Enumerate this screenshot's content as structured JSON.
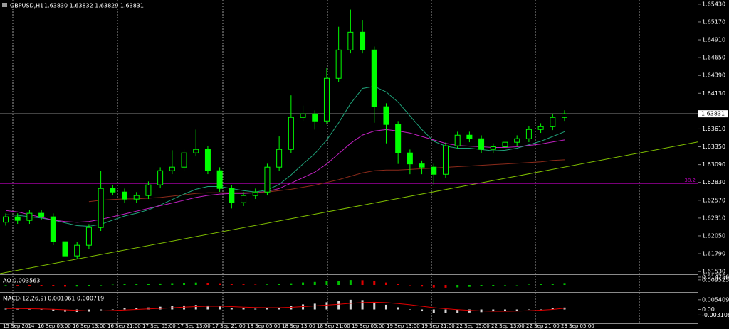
{
  "chart_data": [
    {
      "type": "candlestick",
      "title": "GBPUSD,H1",
      "ohlc_label": "1.63830 1.63832 1.63829 1.63831",
      "up_color": "#00ff00",
      "down_color": "#00ff00",
      "open": [
        1.6225,
        1.62328,
        1.62276,
        1.6238,
        1.62328,
        1.61965,
        1.61758,
        1.61913,
        1.62172,
        1.62742,
        1.6269,
        1.62587,
        1.62639,
        1.62794,
        1.63001,
        1.63053,
        1.6326,
        1.63312,
        1.63001,
        1.62742,
        1.62535,
        1.62639,
        1.6269,
        1.63053,
        1.63312,
        1.63778,
        1.6383,
        1.63726,
        1.64348,
        1.64762,
        1.65021,
        1.64762,
        1.63934,
        1.63675,
        1.6326,
        1.631,
        1.63053,
        1.62949,
        1.63364,
        1.63519,
        1.63467,
        1.63312,
        1.6335,
        1.63416,
        1.63467,
        1.63602,
        1.63643,
        1.63778
      ],
      "high": [
        1.62378,
        1.62378,
        1.6243,
        1.6243,
        1.62378,
        1.62015,
        1.61963,
        1.62222,
        1.63,
        1.62792,
        1.6274,
        1.62689,
        1.62844,
        1.63051,
        1.633,
        1.6331,
        1.636,
        1.63362,
        1.63051,
        1.62792,
        1.62689,
        1.6274,
        1.63103,
        1.635,
        1.641,
        1.6395,
        1.6388,
        1.645,
        1.651,
        1.6535,
        1.652,
        1.64812,
        1.63984,
        1.63725,
        1.6331,
        1.6315,
        1.63103,
        1.63414,
        1.63569,
        1.63569,
        1.63517,
        1.634,
        1.63466,
        1.63517,
        1.63652,
        1.63693,
        1.63828,
        1.63881
      ],
      "low": [
        1.622,
        1.62226,
        1.62226,
        1.62278,
        1.61915,
        1.6165,
        1.61708,
        1.61863,
        1.62122,
        1.6264,
        1.62537,
        1.62537,
        1.62589,
        1.62744,
        1.62951,
        1.63003,
        1.6321,
        1.62951,
        1.62692,
        1.6245,
        1.62485,
        1.62589,
        1.6264,
        1.63003,
        1.63262,
        1.63728,
        1.636,
        1.63676,
        1.64298,
        1.64712,
        1.64712,
        1.637,
        1.634,
        1.631,
        1.6295,
        1.6295,
        1.628,
        1.62899,
        1.63314,
        1.63417,
        1.63262,
        1.63262,
        1.633,
        1.63366,
        1.63417,
        1.63552,
        1.63593,
        1.63728
      ],
      "close": [
        1.62328,
        1.62276,
        1.6238,
        1.62328,
        1.61965,
        1.61758,
        1.61913,
        1.62172,
        1.62742,
        1.6269,
        1.62587,
        1.62639,
        1.62794,
        1.63001,
        1.63053,
        1.6326,
        1.63312,
        1.63001,
        1.62742,
        1.62535,
        1.62639,
        1.6269,
        1.63053,
        1.63312,
        1.63778,
        1.6383,
        1.63726,
        1.64348,
        1.64762,
        1.65021,
        1.64762,
        1.63934,
        1.63675,
        1.6326,
        1.631,
        1.63053,
        1.62949,
        1.63364,
        1.63519,
        1.63467,
        1.63312,
        1.6335,
        1.63416,
        1.63467,
        1.63602,
        1.63643,
        1.63778,
        1.63831
      ],
      "lines": [
        {
          "color": "#1fa37a",
          "values": [
            1.6236,
            1.6235,
            1.6233,
            1.6231,
            1.6228,
            1.6224,
            1.622,
            1.6219,
            1.6222,
            1.6228,
            1.6234,
            1.6238,
            1.6243,
            1.625,
            1.6258,
            1.6266,
            1.6273,
            1.6277,
            1.6277,
            1.6274,
            1.6271,
            1.6269,
            1.6272,
            1.628,
            1.6294,
            1.631,
            1.6325,
            1.6345,
            1.637,
            1.6398,
            1.642,
            1.6423,
            1.6415,
            1.64,
            1.638,
            1.636,
            1.6343,
            1.6336,
            1.6333,
            1.6333,
            1.6331,
            1.6329,
            1.633,
            1.6333,
            1.6338,
            1.6343,
            1.635,
            1.6357
          ]
        },
        {
          "color": "#c020c0",
          "values": [
            1.6242,
            1.624,
            1.6236,
            1.6232,
            1.6228,
            1.6226,
            1.6225,
            1.6226,
            1.6229,
            1.6233,
            1.6237,
            1.6241,
            1.6245,
            1.6249,
            1.6253,
            1.6257,
            1.6261,
            1.6264,
            1.6266,
            1.6267,
            1.6267,
            1.6268,
            1.627,
            1.6274,
            1.6282,
            1.629,
            1.6298,
            1.631,
            1.6325,
            1.634,
            1.6352,
            1.6358,
            1.636,
            1.6358,
            1.6355,
            1.635,
            1.6345,
            1.634,
            1.6337,
            1.6336,
            1.6335,
            1.6334,
            1.6334,
            1.6335,
            1.6337,
            1.6339,
            1.6342,
            1.6345
          ]
        },
        {
          "color": "#8b2a1a",
          "values": [
            null,
            null,
            null,
            null,
            null,
            null,
            null,
            1.6255,
            1.6257,
            1.6258,
            1.6259,
            1.6259,
            1.626,
            1.6261,
            1.6263,
            1.6265,
            1.6267,
            1.6268,
            1.6268,
            1.6268,
            1.6268,
            1.6268,
            1.6269,
            1.6271,
            1.6273,
            1.6276,
            1.6279,
            1.6283,
            1.6287,
            1.6292,
            1.6297,
            1.63,
            1.6301,
            1.6301,
            1.6302,
            1.6303,
            1.6304,
            1.6305,
            1.6306,
            1.6307,
            1.6308,
            1.6309,
            1.631,
            1.6311,
            1.6312,
            1.6313,
            1.6315,
            1.6316
          ]
        }
      ],
      "trendline": {
        "color": "#7fbf00",
        "values": [
          1.615,
          1.6342
        ]
      },
      "current_price": 1.63831,
      "level": {
        "value": 1.62815,
        "label": "38.2",
        "color": "#c000c0"
      },
      "ylim": [
        1.6149,
        1.6547
      ],
      "yticks": [
        {
          "value": 1.6153,
          "label": "1.61530"
        },
        {
          "value": 1.6179,
          "label": "1.61790"
        },
        {
          "value": 1.6205,
          "label": "1.62050"
        },
        {
          "value": 1.6231,
          "label": "1.62310"
        },
        {
          "value": 1.6257,
          "label": "1.62570"
        },
        {
          "value": 1.6283,
          "label": "1.62830"
        },
        {
          "value": 1.6309,
          "label": "1.63090"
        },
        {
          "value": 1.6335,
          "label": "1.63350"
        },
        {
          "value": 1.6361,
          "label": "1.63610"
        },
        {
          "value": 1.6413,
          "label": "1.64130"
        },
        {
          "value": 1.6439,
          "label": "1.64390"
        },
        {
          "value": 1.6465,
          "label": "1.64650"
        },
        {
          "value": 1.6491,
          "label": "1.64910"
        },
        {
          "value": 1.6517,
          "label": "1.65170"
        },
        {
          "value": 1.6543,
          "label": "1.65430"
        }
      ],
      "x_labels": [
        "15 Sep 2014",
        "16 Sep 05:00",
        "16 Sep 13:00",
        "16 Sep 21:00",
        "17 Sep 05:00",
        "17 Sep 13:00",
        "17 Sep 21:00",
        "18 Sep 05:00",
        "18 Sep 13:00",
        "18 Sep 21:00",
        "19 Sep 05:00",
        "19 Sep 13:00",
        "19 Sep 21:00",
        "22 Sep 05:00",
        "22 Sep 13:00",
        "22 Sep 21:00",
        "23 Sep 05:00"
      ]
    },
    {
      "type": "ao",
      "title": "AO 0.003563",
      "up_color": "#00c000",
      "down_color": "#e00000",
      "values": [
        -0.001,
        -0.0012,
        -0.0014,
        -0.0018,
        -0.0025,
        -0.0032,
        -0.003,
        -0.0022,
        -0.0008,
        0.0006,
        0.0014,
        0.0018,
        0.0022,
        0.0028,
        0.0034,
        0.004,
        0.0044,
        0.004,
        0.0032,
        0.002,
        0.0012,
        0.0008,
        0.001,
        0.0018,
        0.0032,
        0.0046,
        0.0056,
        0.0068,
        0.008,
        0.0092,
        0.0088,
        0.007,
        0.0045,
        0.002,
        -0.0005,
        -0.003,
        -0.0048,
        -0.0052,
        -0.0046,
        -0.0036,
        -0.0026,
        -0.0016,
        -0.0008,
        0.0,
        0.0008,
        0.0016,
        0.0026,
        0.003563
      ],
      "ylim": [
        -0.012,
        0.016
      ],
      "yticks": [
        0.014756,
        0.009525
      ]
    },
    {
      "type": "macd",
      "title": "MACD(12,26,9) 0.001061 0.000719",
      "bar_color": "#d8d8d8",
      "signal_color": "#e00000",
      "values": [
        0.0004,
        0.0003,
        0.0002,
        0.0,
        -0.0006,
        -0.0012,
        -0.0014,
        -0.0012,
        -0.0004,
        0.0002,
        0.0006,
        0.0008,
        0.0011,
        0.0015,
        0.0018,
        0.0022,
        0.0025,
        0.0022,
        0.0016,
        0.001,
        0.0006,
        0.0004,
        0.0007,
        0.0012,
        0.002,
        0.0028,
        0.0032,
        0.004,
        0.0048,
        0.0054,
        0.0052,
        0.004,
        0.0026,
        0.0012,
        0.0,
        -0.001,
        -0.0018,
        -0.002,
        -0.0019,
        -0.0017,
        -0.0015,
        -0.0012,
        -0.0009,
        -0.0006,
        -0.0002,
        0.0002,
        0.0006,
        0.001061
      ],
      "signal": [
        0.0005,
        0.0005,
        0.0004,
        0.0003,
        0.0001,
        -0.0002,
        -0.0005,
        -0.0008,
        -0.0008,
        -0.0006,
        -0.0003,
        0.0,
        0.0003,
        0.0006,
        0.0009,
        0.0013,
        0.0016,
        0.0018,
        0.0018,
        0.0016,
        0.0013,
        0.0011,
        0.001,
        0.001,
        0.0012,
        0.0016,
        0.002,
        0.0024,
        0.0029,
        0.0034,
        0.0038,
        0.004,
        0.0038,
        0.0033,
        0.0026,
        0.0018,
        0.001,
        0.0004,
        -0.0001,
        -0.0005,
        -0.0008,
        -0.001,
        -0.001,
        -0.0009,
        -0.0007,
        -0.0004,
        0.0,
        0.000719
      ],
      "ylim": [
        -0.0077,
        0.0085
      ],
      "yticks": [
        0.005409,
        {
          "value": 0,
          "label": "0.00"
        },
        -0.003108
      ]
    }
  ]
}
